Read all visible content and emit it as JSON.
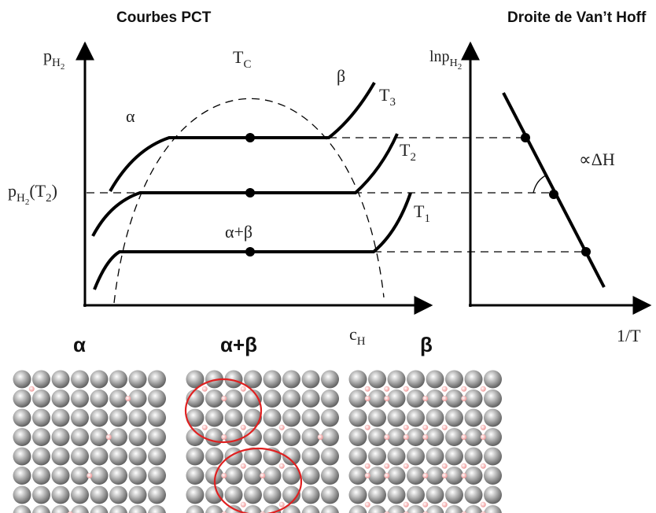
{
  "titles": {
    "left": "Courbes PCT",
    "right": "Droite de Van’t Hoff"
  },
  "pct": {
    "y_label": {
      "main": "p",
      "sub": "H",
      "subsub": "2"
    },
    "critical": {
      "main": "T",
      "sub": "C"
    },
    "beta": "β",
    "alpha": "α",
    "mixed": "α+β",
    "curves": [
      {
        "main": "T",
        "sub": "3"
      },
      {
        "main": "T",
        "sub": "2"
      },
      {
        "main": "T",
        "sub": "1"
      }
    ],
    "plateau_label": {
      "main": "p",
      "sub": "H",
      "subsub": "2",
      "tail": "(T",
      "tail_sub": "2",
      "end": ")"
    },
    "x_label": {
      "main": "c",
      "sub": "H"
    }
  },
  "vanthoff": {
    "y_label": {
      "main": "lnp",
      "sub": "H",
      "subsub": "2"
    },
    "slope": "∝ΔH",
    "x_label": "1/T"
  },
  "phases": [
    "α",
    "α+β",
    "β"
  ]
}
